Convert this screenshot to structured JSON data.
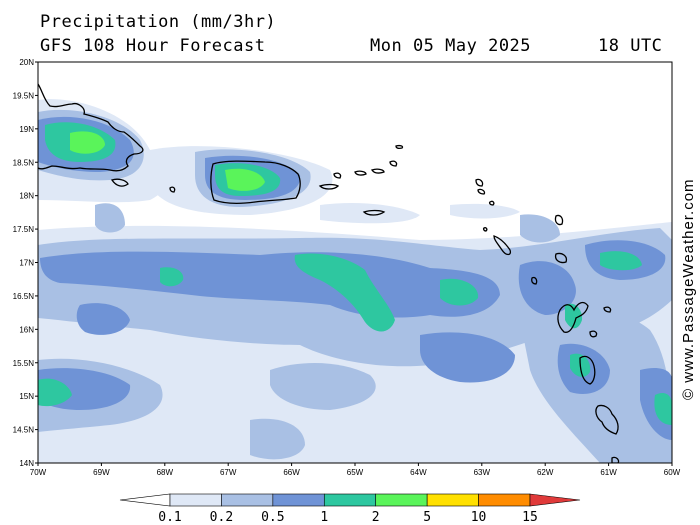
{
  "header": {
    "title": "Precipitation (mm/3hr)",
    "subtitle": "GFS 108 Hour Forecast",
    "date": "Mon 05 May 2025",
    "time": "18 UTC"
  },
  "credit": "© www.PassageWeather.com",
  "map": {
    "lon_range": [
      -70,
      -60
    ],
    "lat_range": [
      14,
      20
    ],
    "lat_ticks": [
      "14N",
      "14.5N",
      "15N",
      "15.5N",
      "16N",
      "16.5N",
      "17N",
      "17.5N",
      "18N",
      "18.5N",
      "19N",
      "19.5N",
      "20N"
    ],
    "lon_ticks": [
      "70W",
      "69W",
      "68W",
      "67W",
      "66W",
      "65W",
      "64W",
      "63W",
      "62W",
      "61W",
      "60W"
    ]
  },
  "legend": {
    "thresholds": [
      "0.1",
      "0.2",
      "0.5",
      "1",
      "2",
      "5",
      "10",
      "15"
    ],
    "colors": [
      "#ffffff",
      "#dfe8f6",
      "#a9c0e4",
      "#6f93d6",
      "#2ec7a0",
      "#5af45a",
      "#ffe000",
      "#ff8c00",
      "#e03a3a"
    ]
  }
}
